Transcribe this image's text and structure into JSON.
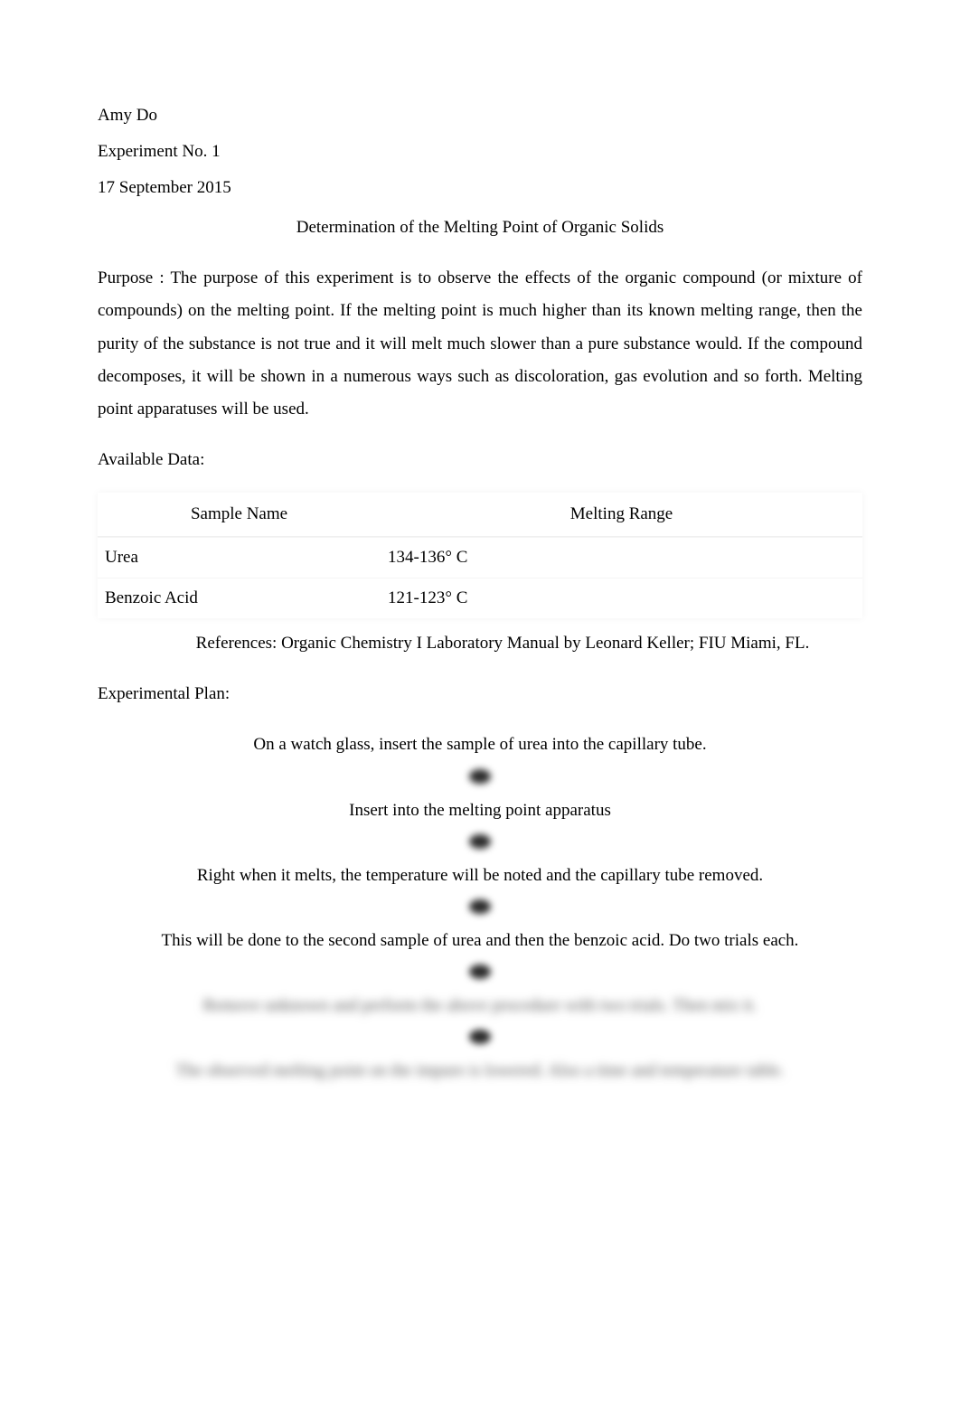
{
  "header": {
    "author": "Amy Do",
    "experiment": "Experiment No. 1",
    "date": "17 September 2015"
  },
  "title": "Determination of the Melting Point of Organic Solids",
  "purpose_label": "Purpose : ",
  "purpose_text": "The purpose of this experiment is to observe the effects of the organic compound (or mixture of compounds) on the melting point. If the melting point is much higher than its known melting range, then the purity of the substance is not true and it will melt much slower than a pure substance would. If the compound decomposes, it will be shown in a numerous ways such as discoloration, gas evolution and so forth. Melting point apparatuses will be used.",
  "available_data_label": "Available Data:",
  "table": {
    "columns": [
      "Sample Name",
      "Melting Range"
    ],
    "rows": [
      {
        "name": "Urea",
        "range": "134-136° C"
      },
      {
        "name": "Benzoic Acid",
        "range": "121-123° C"
      }
    ],
    "header_bg": "#ffffff",
    "row_bg": "#ffffff",
    "border_color": "#f0f0f0"
  },
  "references": {
    "label": "References:  ",
    "text": "Organic Chemistry I Laboratory Manual by Leonard Keller; FIU Miami, FL."
  },
  "exp_plan_label": "Experimental Plan:",
  "steps": [
    "On a watch glass, insert the sample of urea into the capillary tube.",
    "Insert into the melting point apparatus",
    "Right when it melts, the temperature will be noted and the capillary tube removed.",
    "This will be done to the second sample of urea and then the benzoic acid. Do two trials each.",
    "Remove unknown and perform the above procedure with two trials. Then mix it.",
    "The observed melting point on the impure is lowered. Also a time and temperature table."
  ],
  "colors": {
    "text": "#000000",
    "background": "#ffffff",
    "blur_text": "#555555",
    "arrow": "#2a2a2a"
  },
  "typography": {
    "font_family": "Times New Roman",
    "body_fontsize": 19,
    "line_height": 1.9
  }
}
